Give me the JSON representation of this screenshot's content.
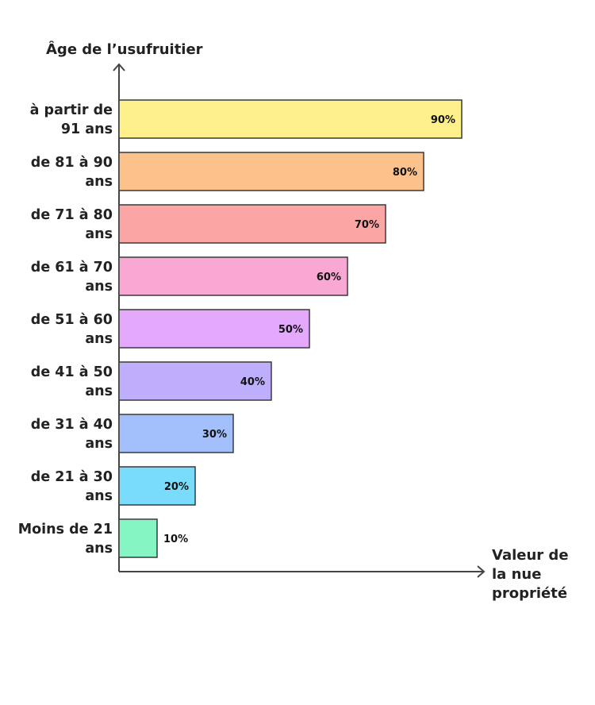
{
  "chart_data": {
    "type": "bar",
    "orientation": "horizontal",
    "ylabel": "Âge de l’usufruitier",
    "xlabel": "Valeur de la nue propriété",
    "categories": [
      "à partir de 91 ans",
      "de 81 à 90 ans",
      "de 71 à 80 ans",
      "de 61 à 70 ans",
      "de 51 à 60 ans",
      "de 41 à 50 ans",
      "de 31 à 40 ans",
      "de 21 à 30 ans",
      "Moins de 21 ans"
    ],
    "category_lines": [
      [
        "à partir de",
        "91 ans"
      ],
      [
        "de 81 à 90",
        "ans"
      ],
      [
        "de 71 à 80",
        "ans"
      ],
      [
        "de 61 à 70",
        "ans"
      ],
      [
        "de 51 à 60",
        "ans"
      ],
      [
        "de 41 à 50",
        "ans"
      ],
      [
        "de 31 à 40",
        "ans"
      ],
      [
        "de 21 à 30",
        "ans"
      ],
      [
        "Moins de 21",
        "ans"
      ]
    ],
    "xlabel_lines": [
      "Valeur de",
      "la nue",
      "propriété"
    ],
    "values": [
      90,
      80,
      70,
      60,
      50,
      40,
      30,
      20,
      10
    ],
    "value_labels": [
      "90%",
      "80%",
      "70%",
      "60%",
      "50%",
      "40%",
      "30%",
      "20%",
      "10%"
    ],
    "colors": [
      "#fef08a",
      "#fdc28c",
      "#fca5a5",
      "#f9a8d4",
      "#e4a8fc",
      "#bfaefc",
      "#a3c0fc",
      "#7adcfc",
      "#86f5c4"
    ],
    "xlim": [
      0,
      100
    ],
    "grid": false,
    "legend": "none"
  }
}
